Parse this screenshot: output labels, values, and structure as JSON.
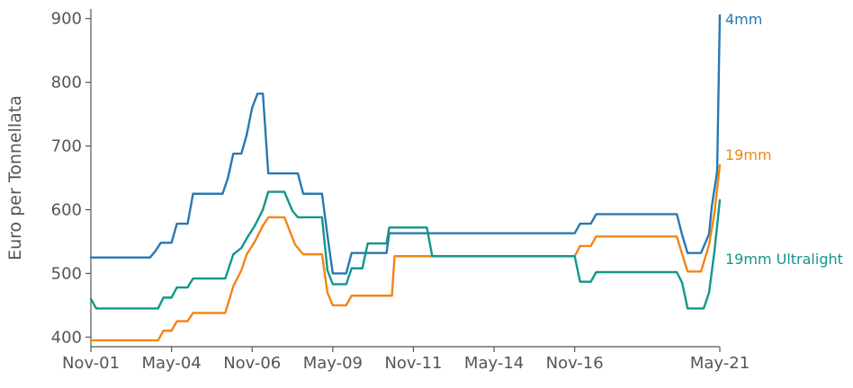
{
  "chart_data": {
    "type": "line",
    "title": "",
    "xlabel": "",
    "ylabel": "Euro per Tonnellata",
    "x_range": [
      "2001-11",
      "2021-05"
    ],
    "ylim": [
      385,
      915
    ],
    "y_ticks": [
      400,
      500,
      600,
      700,
      800,
      900
    ],
    "x_ticks": [
      {
        "date": "2001-11",
        "label": "Nov-01"
      },
      {
        "date": "2004-05",
        "label": "May-04"
      },
      {
        "date": "2006-11",
        "label": "Nov-06"
      },
      {
        "date": "2009-05",
        "label": "May-09"
      },
      {
        "date": "2011-11",
        "label": "Nov-11"
      },
      {
        "date": "2014-05",
        "label": "May-14"
      },
      {
        "date": "2016-11",
        "label": "Nov-16"
      },
      {
        "date": "2021-05",
        "label": "May-21"
      }
    ],
    "grid": false,
    "legend": "labels at line ends (right)",
    "series": [
      {
        "name": "4mm",
        "color": "#2878b0",
        "points": [
          [
            "2001-11",
            525
          ],
          [
            "2003-09",
            525
          ],
          [
            "2003-11",
            535
          ],
          [
            "2004-01",
            548
          ],
          [
            "2004-05",
            548
          ],
          [
            "2004-07",
            578
          ],
          [
            "2004-11",
            578
          ],
          [
            "2005-01",
            625
          ],
          [
            "2005-12",
            625
          ],
          [
            "2006-02",
            650
          ],
          [
            "2006-04",
            688
          ],
          [
            "2006-07",
            688
          ],
          [
            "2006-09",
            718
          ],
          [
            "2006-11",
            760
          ],
          [
            "2007-01",
            782
          ],
          [
            "2007-03",
            782
          ],
          [
            "2007-05",
            657
          ],
          [
            "2008-04",
            657
          ],
          [
            "2008-06",
            625
          ],
          [
            "2009-01",
            625
          ],
          [
            "2009-03",
            560
          ],
          [
            "2009-05",
            500
          ],
          [
            "2009-10",
            500
          ],
          [
            "2009-12",
            532
          ],
          [
            "2011-01",
            532
          ],
          [
            "2011-02",
            563
          ],
          [
            "2016-11",
            563
          ],
          [
            "2017-01",
            578
          ],
          [
            "2017-05",
            578
          ],
          [
            "2017-07",
            593
          ],
          [
            "2020-01",
            593
          ],
          [
            "2020-03",
            560
          ],
          [
            "2020-05",
            532
          ],
          [
            "2020-10",
            532
          ],
          [
            "2021-01",
            562
          ],
          [
            "2021-02",
            605
          ],
          [
            "2021-04",
            660
          ],
          [
            "2021-05",
            905
          ]
        ]
      },
      {
        "name": "19mm",
        "color": "#f28518",
        "points": [
          [
            "2001-11",
            395
          ],
          [
            "2003-12",
            395
          ],
          [
            "2004-02",
            410
          ],
          [
            "2004-05",
            410
          ],
          [
            "2004-07",
            425
          ],
          [
            "2004-11",
            425
          ],
          [
            "2005-01",
            438
          ],
          [
            "2006-01",
            438
          ],
          [
            "2006-04",
            480
          ],
          [
            "2006-07",
            505
          ],
          [
            "2006-09",
            530
          ],
          [
            "2006-12",
            550
          ],
          [
            "2007-03",
            575
          ],
          [
            "2007-05",
            588
          ],
          [
            "2007-11",
            588
          ],
          [
            "2008-03",
            545
          ],
          [
            "2008-06",
            530
          ],
          [
            "2009-01",
            530
          ],
          [
            "2009-03",
            470
          ],
          [
            "2009-05",
            450
          ],
          [
            "2009-10",
            450
          ],
          [
            "2009-12",
            465
          ],
          [
            "2011-03",
            465
          ],
          [
            "2011-04",
            527
          ],
          [
            "2012-06",
            527
          ],
          [
            "2016-11",
            527
          ],
          [
            "2017-01",
            543
          ],
          [
            "2017-05",
            543
          ],
          [
            "2017-07",
            558
          ],
          [
            "2020-01",
            558
          ],
          [
            "2020-03",
            530
          ],
          [
            "2020-05",
            503
          ],
          [
            "2020-10",
            503
          ],
          [
            "2021-01",
            545
          ],
          [
            "2021-03",
            595
          ],
          [
            "2021-05",
            670
          ]
        ]
      },
      {
        "name": "19mm Ultralight",
        "color": "#13968c",
        "points": [
          [
            "2001-11",
            460
          ],
          [
            "2002-01",
            445
          ],
          [
            "2003-12",
            445
          ],
          [
            "2004-02",
            462
          ],
          [
            "2004-05",
            462
          ],
          [
            "2004-07",
            478
          ],
          [
            "2004-11",
            478
          ],
          [
            "2005-01",
            492
          ],
          [
            "2006-01",
            492
          ],
          [
            "2006-04",
            530
          ],
          [
            "2006-07",
            540
          ],
          [
            "2006-09",
            555
          ],
          [
            "2006-12",
            575
          ],
          [
            "2007-03",
            600
          ],
          [
            "2007-05",
            628
          ],
          [
            "2007-11",
            628
          ],
          [
            "2008-02",
            598
          ],
          [
            "2008-04",
            588
          ],
          [
            "2009-01",
            588
          ],
          [
            "2009-03",
            505
          ],
          [
            "2009-05",
            483
          ],
          [
            "2009-10",
            483
          ],
          [
            "2009-12",
            508
          ],
          [
            "2010-04",
            508
          ],
          [
            "2010-06",
            547
          ],
          [
            "2011-01",
            547
          ],
          [
            "2011-02",
            572
          ],
          [
            "2012-04",
            572
          ],
          [
            "2012-06",
            527
          ],
          [
            "2016-11",
            527
          ],
          [
            "2017-01",
            487
          ],
          [
            "2017-05",
            487
          ],
          [
            "2017-07",
            502
          ],
          [
            "2020-01",
            502
          ],
          [
            "2020-03",
            485
          ],
          [
            "2020-05",
            445
          ],
          [
            "2020-11",
            445
          ],
          [
            "2021-01",
            470
          ],
          [
            "2021-03",
            535
          ],
          [
            "2021-05",
            615
          ]
        ]
      }
    ]
  }
}
